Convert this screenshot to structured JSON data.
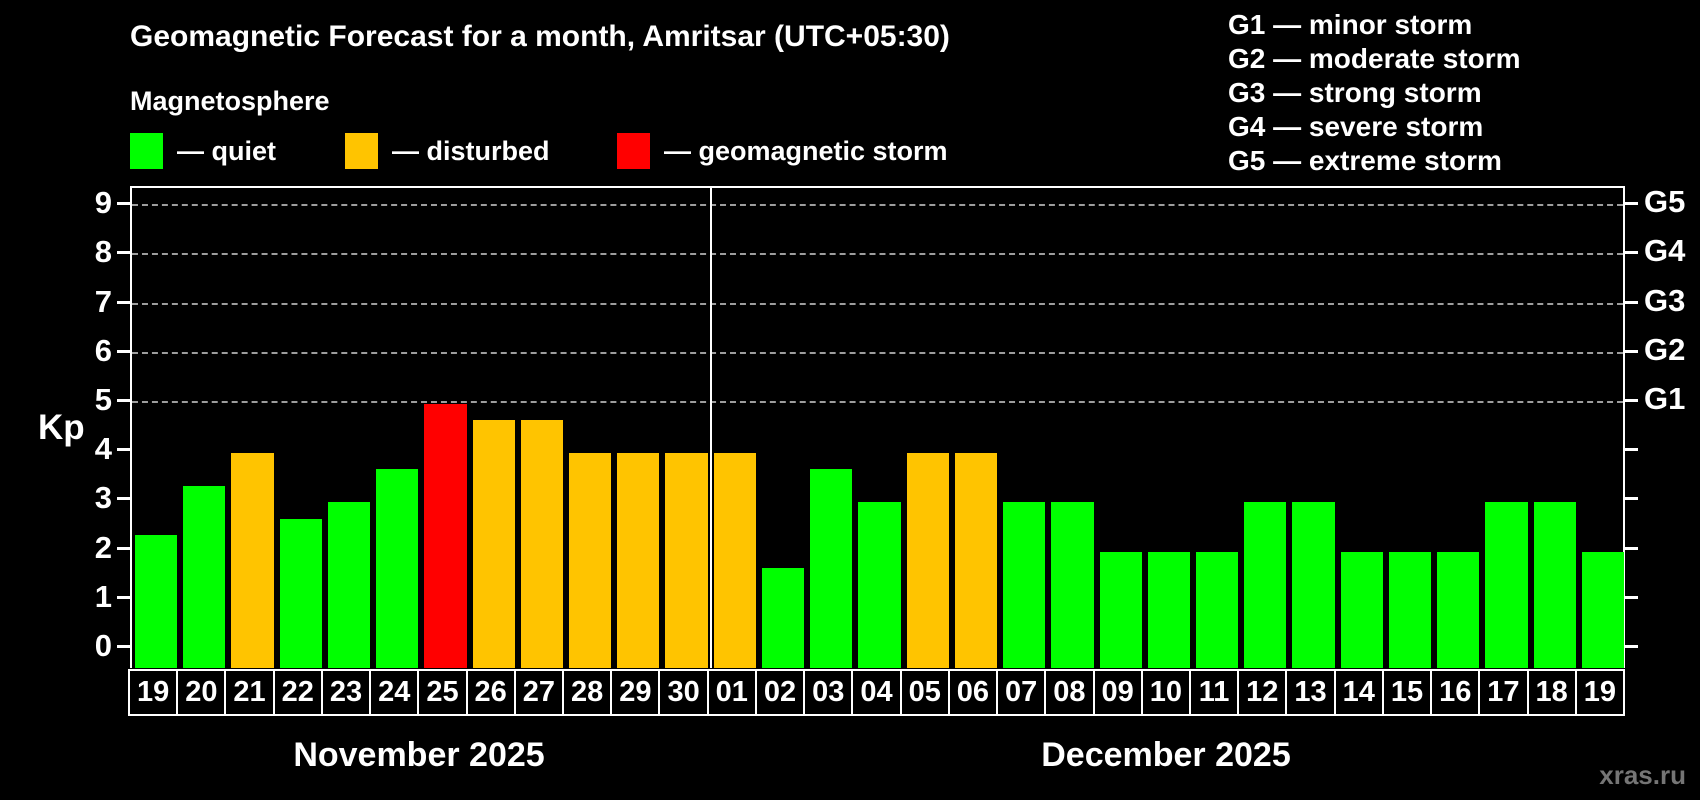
{
  "header": {
    "title": "Geomagnetic Forecast for a month, Amritsar (UTC+05:30)",
    "subtitle": "Magnetosphere"
  },
  "legend": {
    "items": [
      {
        "id": "quiet",
        "label": "— quiet",
        "color": "#00ff00"
      },
      {
        "id": "disturbed",
        "label": "— disturbed",
        "color": "#ffc400"
      },
      {
        "id": "storm",
        "label": "— geomagnetic storm",
        "color": "#ff0000"
      }
    ]
  },
  "storm_scale_legend": {
    "items": [
      "G1 — minor storm",
      "G2 — moderate storm",
      "G3 — strong storm",
      "G4 — severe storm",
      "G5 — extreme storm"
    ]
  },
  "watermark": "xras.ru",
  "chart_data": {
    "type": "bar",
    "title": "Geomagnetic Forecast for a month, Amritsar (UTC+05:30)",
    "ylabel": "Kp",
    "ylim": [
      0,
      9.5
    ],
    "y_ticks": [
      0,
      1,
      2,
      3,
      4,
      5,
      6,
      7,
      8,
      9
    ],
    "gridlines_kp": [
      5,
      6,
      7,
      8,
      9
    ],
    "right_axis_labels": [
      {
        "kp": 5,
        "label": "G1"
      },
      {
        "kp": 6,
        "label": "G2"
      },
      {
        "kp": 7,
        "label": "G3"
      },
      {
        "kp": 8,
        "label": "G4"
      },
      {
        "kp": 9,
        "label": "G5"
      }
    ],
    "status_colors": {
      "quiet": "#00ff00",
      "disturbed": "#ffc400",
      "storm": "#ff0000"
    },
    "legend_position": "top",
    "grid": "dashed-horizontal-above-kp5",
    "months": [
      {
        "label": "November 2025",
        "key": "nov",
        "bars": [
          {
            "day": "19",
            "kp": 2.33,
            "status": "quiet"
          },
          {
            "day": "20",
            "kp": 3.33,
            "status": "quiet"
          },
          {
            "day": "21",
            "kp": 4.0,
            "status": "disturbed"
          },
          {
            "day": "22",
            "kp": 2.67,
            "status": "quiet"
          },
          {
            "day": "23",
            "kp": 3.0,
            "status": "quiet"
          },
          {
            "day": "24",
            "kp": 3.67,
            "status": "quiet"
          },
          {
            "day": "25",
            "kp": 5.0,
            "status": "storm"
          },
          {
            "day": "26",
            "kp": 4.67,
            "status": "disturbed"
          },
          {
            "day": "27",
            "kp": 4.67,
            "status": "disturbed"
          },
          {
            "day": "28",
            "kp": 4.0,
            "status": "disturbed"
          },
          {
            "day": "29",
            "kp": 4.0,
            "status": "disturbed"
          },
          {
            "day": "30",
            "kp": 4.0,
            "status": "disturbed"
          }
        ]
      },
      {
        "label": "December 2025",
        "key": "dec",
        "bars": [
          {
            "day": "01",
            "kp": 4.0,
            "status": "disturbed"
          },
          {
            "day": "02",
            "kp": 1.67,
            "status": "quiet"
          },
          {
            "day": "03",
            "kp": 3.67,
            "status": "quiet"
          },
          {
            "day": "04",
            "kp": 3.0,
            "status": "quiet"
          },
          {
            "day": "05",
            "kp": 4.0,
            "status": "disturbed"
          },
          {
            "day": "06",
            "kp": 4.0,
            "status": "disturbed"
          },
          {
            "day": "07",
            "kp": 3.0,
            "status": "quiet"
          },
          {
            "day": "08",
            "kp": 3.0,
            "status": "quiet"
          },
          {
            "day": "09",
            "kp": 2.0,
            "status": "quiet"
          },
          {
            "day": "10",
            "kp": 2.0,
            "status": "quiet"
          },
          {
            "day": "11",
            "kp": 2.0,
            "status": "quiet"
          },
          {
            "day": "12",
            "kp": 3.0,
            "status": "quiet"
          },
          {
            "day": "13",
            "kp": 3.0,
            "status": "quiet"
          },
          {
            "day": "14",
            "kp": 2.0,
            "status": "quiet"
          },
          {
            "day": "15",
            "kp": 2.0,
            "status": "quiet"
          },
          {
            "day": "16",
            "kp": 2.0,
            "status": "quiet"
          },
          {
            "day": "17",
            "kp": 3.0,
            "status": "quiet"
          },
          {
            "day": "18",
            "kp": 3.0,
            "status": "quiet"
          },
          {
            "day": "19",
            "kp": 2.0,
            "status": "quiet"
          }
        ]
      }
    ]
  }
}
